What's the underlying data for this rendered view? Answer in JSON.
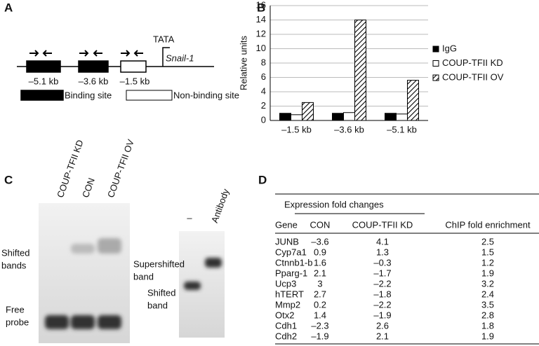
{
  "panel_labels": [
    "A",
    "B",
    "C",
    "D"
  ],
  "panel_a": {
    "tata": "TATA",
    "gene": "Snail-1",
    "sites": [
      "–5.1 kb",
      "–3.6 kb",
      "–1.5 kb"
    ],
    "legend": [
      "Binding site",
      "Non-binding site"
    ]
  },
  "chart_data": {
    "type": "bar",
    "y_label": "Relative units",
    "categories": [
      "–1.5 kb",
      "–3.6 kb",
      "–5.1 kb"
    ],
    "series": [
      {
        "name": "IgG",
        "color": "#000000",
        "values": [
          1,
          1,
          1
        ]
      },
      {
        "name": "COUP-TFII KD",
        "color": "#ffffff",
        "values": [
          0.8,
          1.1,
          0.9
        ]
      },
      {
        "name": "COUP-TFII OV",
        "color": "#ffffff",
        "hatch": true,
        "values": [
          2.5,
          14,
          5.6
        ]
      }
    ],
    "ylim": [
      0,
      16
    ],
    "yticks": [
      0,
      2,
      4,
      6,
      8,
      10,
      12,
      14,
      16
    ],
    "grid": true,
    "legend": "right"
  },
  "panel_c": {
    "lanes_left": [
      "COUP-TFII KD",
      "CON",
      "COUP-TFII OV"
    ],
    "shifted_bands": [
      "Shifted",
      "bands"
    ],
    "free_probe": [
      "Free",
      "probe"
    ],
    "lanes_right": [
      "–",
      "Antibody"
    ],
    "supershifted_band": [
      "Supershifted",
      "band"
    ],
    "shifted_band": [
      "Shifted",
      "band"
    ]
  },
  "panel_d": {
    "group_header": "Expression fold changes",
    "columns": [
      "Gene",
      "CON",
      "COUP-TFII KD",
      "ChIP fold enrichment"
    ],
    "rows": [
      [
        "JUNB",
        "–3.6",
        "4.1",
        "2.5"
      ],
      [
        "Cyp7a1",
        "0.9",
        "1.3",
        "1.5"
      ],
      [
        "Ctnnb1-b",
        "1.6",
        "–0.3",
        "1.2"
      ],
      [
        "Pparg-1",
        "2.1",
        "–1.7",
        "1.9"
      ],
      [
        "Ucp3",
        "3",
        "–2.2",
        "3.2"
      ],
      [
        "hTERT",
        "2.7",
        "–1.8",
        "2.4"
      ],
      [
        "Mmp2",
        "0.2",
        "–2.2",
        "3.5"
      ],
      [
        "Otx2",
        "1.4",
        "–1.9",
        "2.8"
      ],
      [
        "Cdh1",
        "–2.3",
        "2.6",
        "1.8"
      ],
      [
        "Cdh2",
        "–1.9",
        "2.1",
        "1.9"
      ]
    ]
  }
}
